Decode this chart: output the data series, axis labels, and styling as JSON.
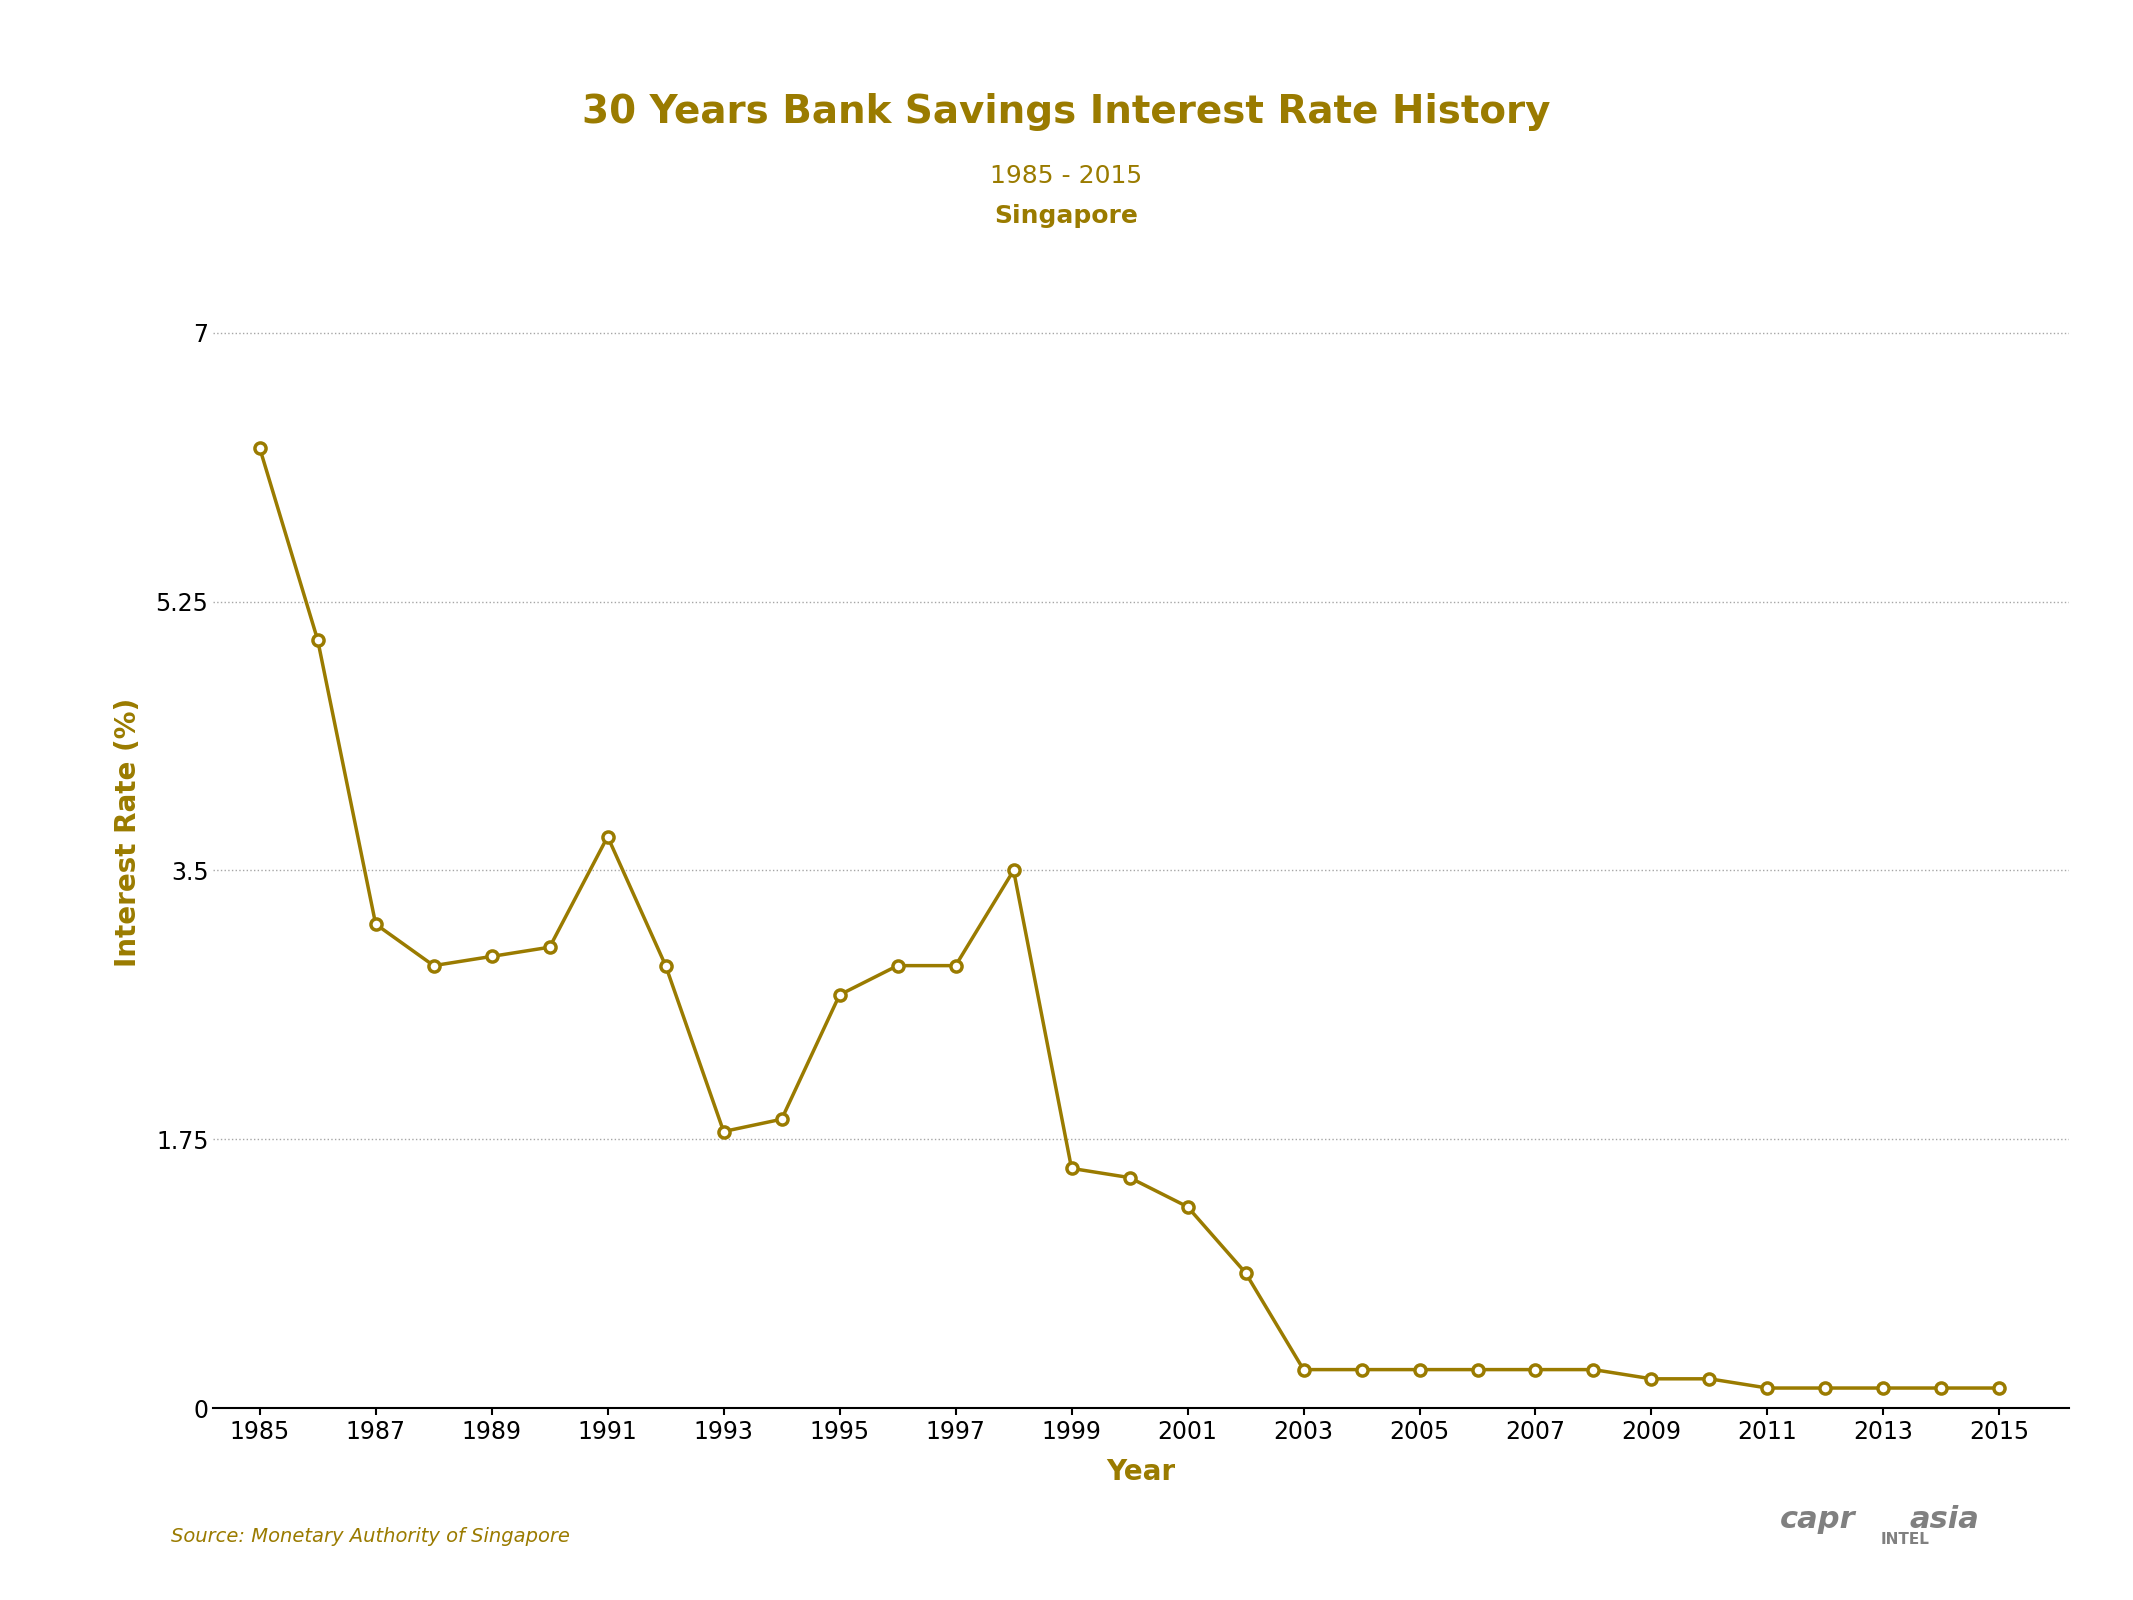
{
  "title": "30 Years Bank Savings Interest Rate History",
  "subtitle1": "1985 - 2015",
  "subtitle2": "Singapore",
  "xlabel": "Year",
  "ylabel": "Interest Rate (%)",
  "source": "Source: Monetary Authority of Singapore",
  "color": "#9A7B00",
  "background_color": "#FFFFFF",
  "years": [
    1985,
    1986,
    1987,
    1988,
    1989,
    1990,
    1991,
    1992,
    1993,
    1994,
    1995,
    1996,
    1997,
    1998,
    1999,
    2000,
    2001,
    2002,
    2003,
    2004,
    2005,
    2006,
    2007,
    2008,
    2009,
    2010,
    2011,
    2012,
    2013,
    2014,
    2015
  ],
  "rates": [
    6.25,
    5.0,
    3.15,
    2.88,
    2.94,
    3.0,
    3.72,
    2.88,
    1.8,
    1.88,
    2.69,
    2.88,
    2.88,
    3.5,
    1.56,
    1.5,
    1.31,
    0.88,
    0.25,
    0.25,
    0.25,
    0.25,
    0.25,
    0.25,
    0.19,
    0.19,
    0.13,
    0.13,
    0.13,
    0.13,
    0.13
  ],
  "yticks": [
    0,
    1.75,
    3.5,
    5.25,
    7
  ],
  "ytick_labels": [
    "0",
    "1.75",
    "3.5",
    "5.25",
    "7"
  ],
  "xtick_years": [
    1985,
    1987,
    1989,
    1991,
    1993,
    1995,
    1997,
    1999,
    2001,
    2003,
    2005,
    2007,
    2009,
    2011,
    2013,
    2015
  ],
  "ymin": 0,
  "ymax": 7.5,
  "title_fontsize": 28,
  "subtitle_fontsize": 18,
  "axis_label_fontsize": 20,
  "tick_fontsize": 17
}
